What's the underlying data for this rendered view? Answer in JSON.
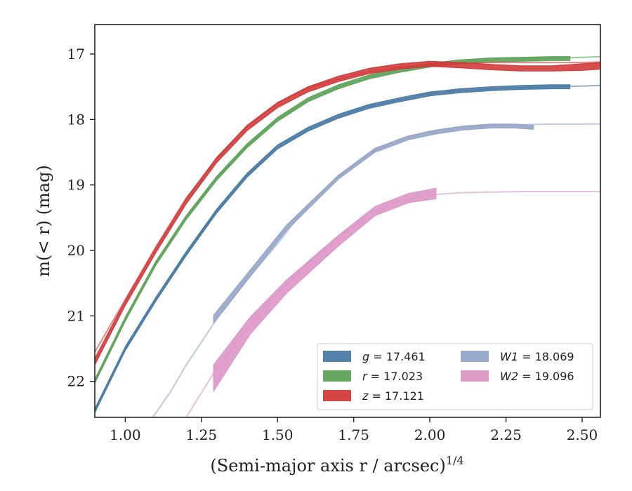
{
  "chart_data": {
    "type": "line",
    "xlabel": "(Semi-major axis r / arcsec)",
    "xlabel_exponent": "1/4",
    "ylabel": "m(< r) (mag)",
    "xlim": [
      0.9,
      2.56
    ],
    "ylim": [
      22.55,
      16.55
    ],
    "y_inverted": true,
    "x_ticks": [
      "1.00",
      "1.25",
      "1.50",
      "1.75",
      "2.00",
      "2.25",
      "2.50"
    ],
    "x_tick_values": [
      1.0,
      1.25,
      1.5,
      1.75,
      2.0,
      2.25,
      2.5
    ],
    "y_ticks": [
      "17",
      "18",
      "19",
      "20",
      "21",
      "22"
    ],
    "y_tick_values": [
      17,
      18,
      19,
      20,
      21,
      22
    ],
    "grid": false,
    "legend_position": "lower-right",
    "legend_columns": 2,
    "series": [
      {
        "name": "g = 17.461",
        "legend_symbol": "g",
        "legend_value": "17.461",
        "color": "#4a7ba6",
        "model_x": [
          0.9,
          1.0,
          1.1,
          1.2,
          1.3,
          1.4,
          1.5,
          1.6,
          1.7,
          1.8,
          1.9,
          2.0,
          2.1,
          2.2,
          2.3,
          2.4,
          2.5,
          2.56
        ],
        "model_y": [
          22.45,
          21.5,
          20.75,
          20.05,
          19.4,
          18.85,
          18.42,
          18.15,
          17.95,
          17.8,
          17.7,
          17.61,
          17.56,
          17.53,
          17.51,
          17.5,
          17.49,
          17.48
        ],
        "obs_x": [
          0.9,
          1.0,
          1.1,
          1.2,
          1.3,
          1.4,
          1.5,
          1.6,
          1.7,
          1.8,
          1.9,
          2.0,
          2.1,
          2.2,
          2.3,
          2.4,
          2.46
        ],
        "obs_y": [
          22.45,
          21.5,
          20.75,
          20.05,
          19.4,
          18.85,
          18.42,
          18.15,
          17.95,
          17.8,
          17.7,
          17.61,
          17.56,
          17.53,
          17.51,
          17.5,
          17.5
        ],
        "obs_err": [
          0.03,
          0.03,
          0.03,
          0.03,
          0.03,
          0.03,
          0.03,
          0.03,
          0.03,
          0.03,
          0.03,
          0.03,
          0.03,
          0.03,
          0.03,
          0.03,
          0.03
        ]
      },
      {
        "name": "r = 17.023",
        "legend_symbol": "r",
        "legend_value": "17.023",
        "color": "#5ea35a",
        "model_x": [
          0.9,
          1.0,
          1.1,
          1.2,
          1.3,
          1.4,
          1.5,
          1.6,
          1.7,
          1.8,
          1.9,
          2.0,
          2.1,
          2.2,
          2.3,
          2.4,
          2.5,
          2.56
        ],
        "model_y": [
          22.0,
          21.05,
          20.2,
          19.5,
          18.9,
          18.4,
          18.0,
          17.7,
          17.5,
          17.35,
          17.25,
          17.17,
          17.12,
          17.09,
          17.07,
          17.06,
          17.05,
          17.04
        ],
        "obs_x": [
          0.9,
          1.0,
          1.1,
          1.2,
          1.3,
          1.4,
          1.5,
          1.6,
          1.7,
          1.8,
          1.9,
          2.0,
          2.1,
          2.2,
          2.3,
          2.4,
          2.46
        ],
        "obs_y": [
          22.0,
          21.05,
          20.2,
          19.5,
          18.9,
          18.4,
          18.0,
          17.7,
          17.5,
          17.35,
          17.25,
          17.17,
          17.12,
          17.09,
          17.08,
          17.07,
          17.07
        ],
        "obs_err": [
          0.03,
          0.03,
          0.03,
          0.03,
          0.03,
          0.03,
          0.03,
          0.03,
          0.03,
          0.03,
          0.03,
          0.03,
          0.03,
          0.03,
          0.03,
          0.03,
          0.03
        ]
      },
      {
        "name": "z = 17.121",
        "legend_symbol": "z",
        "legend_value": "17.121",
        "color": "#d13b3b",
        "model_x": [
          0.9,
          1.0,
          1.1,
          1.2,
          1.3,
          1.4,
          1.5,
          1.6,
          1.7,
          1.8,
          1.9,
          2.0,
          2.1,
          2.2,
          2.3,
          2.4,
          2.5,
          2.56
        ],
        "model_y": [
          21.55,
          20.75,
          19.95,
          19.2,
          18.6,
          18.1,
          17.75,
          17.52,
          17.38,
          17.27,
          17.2,
          17.16,
          17.14,
          17.13,
          17.13,
          17.13,
          17.13,
          17.12
        ],
        "obs_x": [
          0.9,
          1.0,
          1.1,
          1.2,
          1.3,
          1.4,
          1.5,
          1.6,
          1.7,
          1.8,
          1.9,
          2.0,
          2.1,
          2.2,
          2.3,
          2.4,
          2.5,
          2.56
        ],
        "obs_y": [
          21.7,
          20.8,
          20.0,
          19.25,
          18.62,
          18.13,
          17.78,
          17.54,
          17.38,
          17.26,
          17.19,
          17.15,
          17.17,
          17.2,
          17.22,
          17.22,
          17.2,
          17.18
        ],
        "obs_err": [
          0.05,
          0.04,
          0.04,
          0.04,
          0.04,
          0.04,
          0.04,
          0.04,
          0.04,
          0.04,
          0.04,
          0.04,
          0.04,
          0.04,
          0.04,
          0.04,
          0.05,
          0.05
        ]
      },
      {
        "name": "W1 = 18.069",
        "legend_symbol": "W1",
        "legend_value": "18.069",
        "color": "#96a5c8",
        "model_x": [
          1.09,
          1.15,
          1.2,
          1.3,
          1.4,
          1.5,
          1.6,
          1.7,
          1.8,
          1.9,
          2.0,
          2.1,
          2.2,
          2.3,
          2.4,
          2.5,
          2.56
        ],
        "model_y": [
          22.55,
          22.15,
          21.75,
          21.05,
          20.45,
          19.9,
          19.3,
          18.87,
          18.52,
          18.3,
          18.18,
          18.12,
          18.09,
          18.08,
          18.07,
          18.07,
          18.07
        ],
        "obs_x": [
          1.29,
          1.41,
          1.53,
          1.7,
          1.82,
          1.93,
          2.02,
          2.11,
          2.2,
          2.28,
          2.34
        ],
        "obs_y": [
          21.05,
          20.35,
          19.65,
          18.88,
          18.47,
          18.28,
          18.19,
          18.13,
          18.1,
          18.1,
          18.12
        ],
        "obs_err": [
          0.06,
          0.05,
          0.04,
          0.03,
          0.03,
          0.03,
          0.03,
          0.03,
          0.03,
          0.03,
          0.03
        ]
      },
      {
        "name": "W2 = 19.096",
        "legend_symbol": "W2",
        "legend_value": "19.096",
        "color": "#dd96c5",
        "model_x": [
          1.2,
          1.3,
          1.4,
          1.5,
          1.6,
          1.7,
          1.8,
          1.9,
          2.0,
          2.1,
          2.2,
          2.3,
          2.4,
          2.5,
          2.56
        ],
        "model_y": [
          22.55,
          21.8,
          21.2,
          20.65,
          20.2,
          19.8,
          19.45,
          19.25,
          19.15,
          19.12,
          19.11,
          19.1,
          19.1,
          19.1,
          19.1
        ],
        "obs_x": [
          1.29,
          1.41,
          1.53,
          1.7,
          1.82,
          1.93,
          2.02
        ],
        "obs_y": [
          21.95,
          21.15,
          20.55,
          19.85,
          19.4,
          19.2,
          19.13
        ],
        "obs_err": [
          0.2,
          0.13,
          0.1,
          0.08,
          0.07,
          0.07,
          0.08
        ]
      }
    ]
  }
}
